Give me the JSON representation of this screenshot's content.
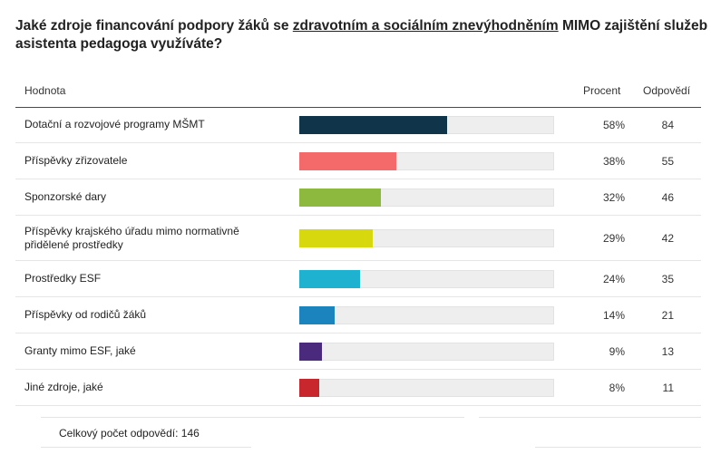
{
  "question": {
    "part1": "Jaké zdroje financování podpory žáků se ",
    "underlined": "zdravotním a sociálním znevýhodněním",
    "part2": " MIMO zajištění služeb asistenta pedagoga využíváte?"
  },
  "table": {
    "col_label": "Hodnota",
    "col_percent": "Procent",
    "col_count": "Odpovědí"
  },
  "chart_data": {
    "type": "bar",
    "orientation": "horizontal",
    "categories": [
      "Dotační a rozvojové programy MŠMT",
      "Příspěvky zřizovatele",
      "Sponzorské dary",
      "Příspěvky krajského úřadu mimo normativně přidělené prostředky",
      "Prostředky ESF",
      "Příspěvky od rodičů žáků",
      "Granty mimo ESF, jaké",
      "Jiné zdroje, jaké"
    ],
    "percent_labels": [
      "58%",
      "38%",
      "32%",
      "29%",
      "24%",
      "14%",
      "9%",
      "8%"
    ],
    "values": [
      58,
      38,
      32,
      29,
      24,
      14,
      9,
      8
    ],
    "counts": [
      84,
      55,
      46,
      42,
      35,
      21,
      13,
      11
    ],
    "colors": [
      "#10344a",
      "#f46a6a",
      "#8db93e",
      "#d8d80e",
      "#1fb1d0",
      "#1b84be",
      "#4a2a7c",
      "#c8272e"
    ],
    "xlim": [
      0,
      100
    ]
  },
  "footer": {
    "total_label": "Celkový počet odpovědí:",
    "total_value": "146"
  }
}
